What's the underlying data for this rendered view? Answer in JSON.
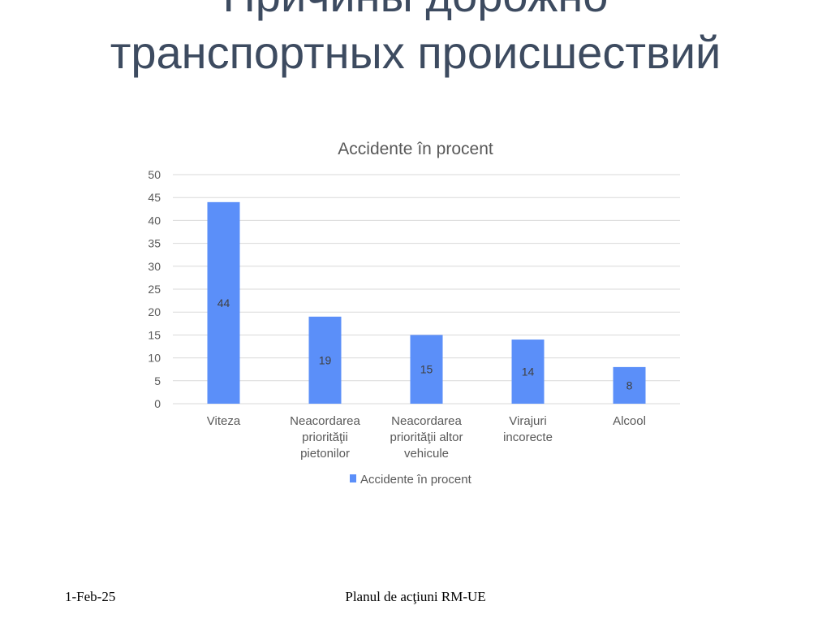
{
  "slide": {
    "title_line1": "Причины дорожно",
    "title_line2": "транспортных происшествий"
  },
  "footer": {
    "date": "1-Feb-25",
    "center_text": "Planul de acţiuni RM-UE"
  },
  "colors": {
    "bar": "#5b8ff9",
    "grid": "#d9d9d9",
    "text": "#595959",
    "title_text": "#3d4b60"
  },
  "chart_data": {
    "type": "bar",
    "title": "Accidente în procent",
    "categories": [
      [
        "Viteza"
      ],
      [
        "Neacordarea",
        "priorităţii",
        "pietonilor"
      ],
      [
        "Neacordarea",
        "priorităţii altor",
        "vehicule"
      ],
      [
        "Virajuri",
        "incorecte"
      ],
      [
        "Alcool"
      ]
    ],
    "series": [
      {
        "name": "Accidente în procent",
        "values": [
          44,
          19,
          15,
          14,
          8
        ]
      }
    ],
    "ylim": [
      0,
      50
    ],
    "yticks": [
      0,
      5,
      10,
      15,
      20,
      25,
      30,
      35,
      40,
      45,
      50
    ],
    "grid": true,
    "legend": "bottom",
    "data_labels": true
  }
}
